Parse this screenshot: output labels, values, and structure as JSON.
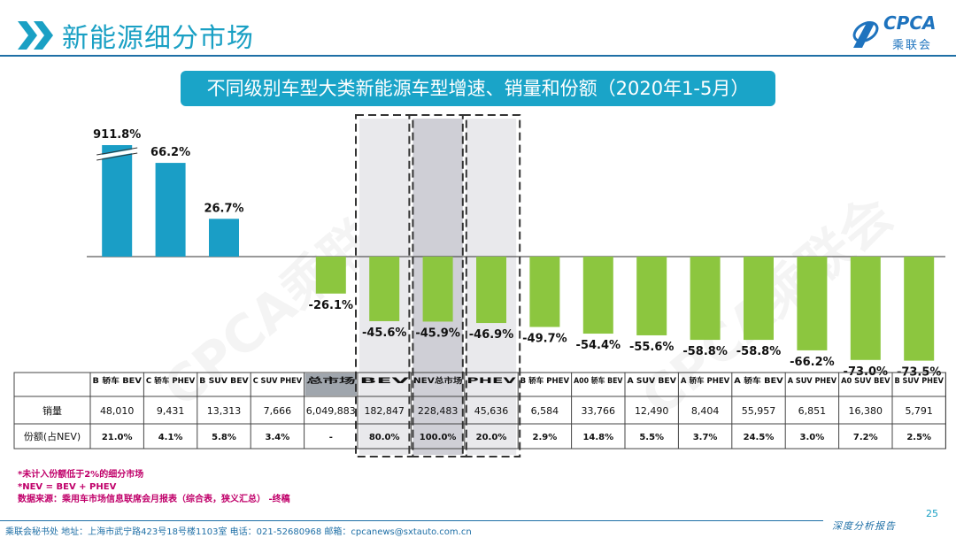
{
  "header": {
    "title": "新能源细分市场",
    "logo_text": "CPCA",
    "logo_cn": "乘联会",
    "subtitle": "不同级别车型大类新能源车型增速、销量和份额（2020年1-5月）"
  },
  "watermark": "CPCA乘联会",
  "table": {
    "row_labels": [
      "销量",
      "份额(占NEV)"
    ]
  },
  "chart_data": {
    "type": "bar",
    "categories": [
      "B 轿车 BEV",
      "C 轿车 PHEV",
      "B SUV BEV",
      "C SUV PHEV",
      "总市场",
      "BEV",
      "NEV总市场",
      "PHEV",
      "B 轿车 PHEV",
      "A00 轿车 BEV",
      "A SUV BEV",
      "A 轿车 PHEV",
      "A 轿车 BEV",
      "A SUV PHEV",
      "A0 SUV BEV",
      "B SUV PHEV"
    ],
    "values": [
      911.8,
      66.2,
      26.7,
      null,
      -26.1,
      -45.6,
      -45.9,
      -46.9,
      -49.7,
      -54.4,
      -55.6,
      -58.8,
      -58.8,
      -66.2,
      -73.0,
      -73.5
    ],
    "value_labels": [
      "911.8%",
      "66.2%",
      "26.7%",
      "",
      "-26.1%",
      "-45.6%",
      "-45.9%",
      "-46.9%",
      "-49.7%",
      "-54.4%",
      "-55.6%",
      "-58.8%",
      "-58.8%",
      "-66.2%",
      "-73.0%",
      "-73.5%"
    ],
    "sales": [
      "48,010",
      "9,431",
      "13,313",
      "7,666",
      "6,049,883",
      "182,847",
      "228,483",
      "45,636",
      "6,584",
      "33,766",
      "12,490",
      "8,404",
      "55,957",
      "6,851",
      "16,380",
      "5,791"
    ],
    "share": [
      "21.0%",
      "4.1%",
      "5.8%",
      "3.4%",
      "-",
      "80.0%",
      "100.0%",
      "20.0%",
      "2.9%",
      "14.8%",
      "5.5%",
      "3.7%",
      "24.5%",
      "3.0%",
      "7.2%",
      "2.5%"
    ],
    "axis_break": "911.8% bar is shown broken (truncated)",
    "colors": {
      "positive": "#1a9ec6",
      "negative": "#8cc63f",
      "highlight_bg": "#e9e9ec",
      "nev_bg": "#cfcfd6",
      "total_header_bg": "#a0a6ad"
    },
    "highlight_categories": [
      "BEV",
      "NEV总市场",
      "PHEV"
    ]
  },
  "notes": [
    "*未计入份额低于2%的细分市场",
    "*NEV = BEV + PHEV",
    "数据来源：乘用车市场信息联席会月报表（综合表，狭义汇总） -终稿"
  ],
  "page_number": "25",
  "slogan": "深度分析报告",
  "footer": "乘联会秘书处   地址：上海市武宁路423号18号楼1103室   电话：021-52680968   邮箱：cpcanews@sxtauto.com.cn"
}
